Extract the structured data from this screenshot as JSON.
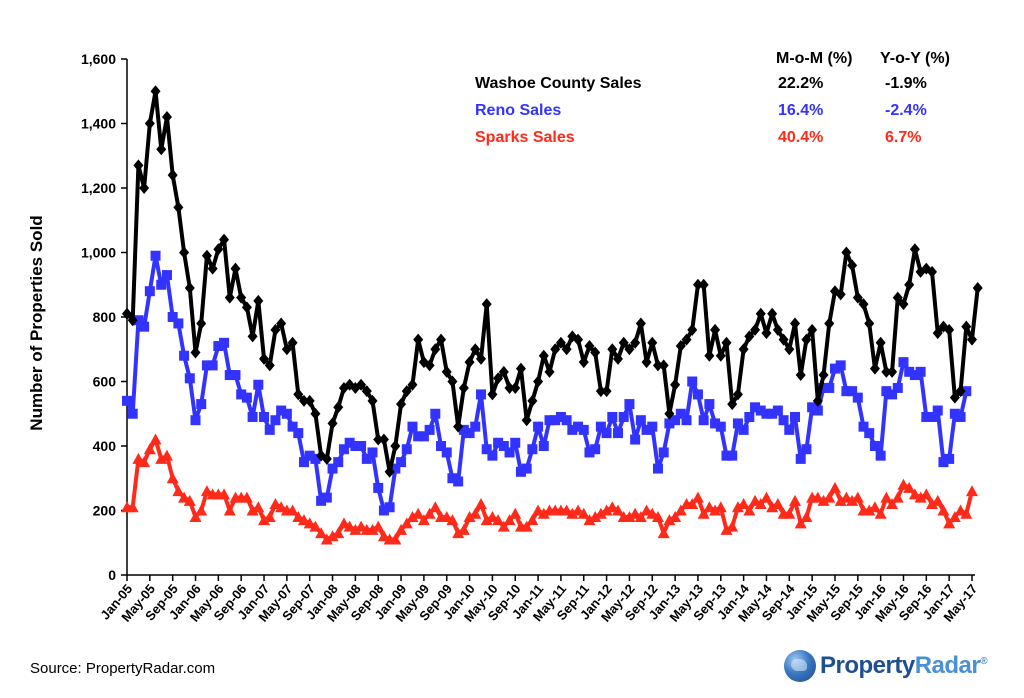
{
  "chart_data": {
    "type": "line",
    "ylabel": "Number of Properties Sold",
    "xlabel": "",
    "ylim": [
      0,
      1600
    ],
    "yticks": [
      0,
      200,
      400,
      600,
      800,
      1000,
      1200,
      1400,
      1600
    ],
    "ytick_labels": [
      "0",
      "200",
      "400",
      "600",
      "800",
      "1,000",
      "1,200",
      "1,400",
      "1,600"
    ],
    "x_tick_labels": [
      "Jan-05",
      "May-05",
      "Sep-05",
      "Jan-06",
      "May-06",
      "Sep-06",
      "Jan-07",
      "May-07",
      "Sep-07",
      "Jan-08",
      "May-08",
      "Sep-08",
      "Jan-09",
      "May-09",
      "Sep-09",
      "Jan-10",
      "May-10",
      "Sep-10",
      "Jan-11",
      "May-11",
      "Sep-11",
      "Jan-12",
      "May-12",
      "Sep-12",
      "Jan-13",
      "May-13",
      "Sep-13",
      "Jan-14",
      "May-14",
      "Sep-14",
      "Jan-15",
      "May-15",
      "Sep-15",
      "Jan-16",
      "May-16",
      "Sep-16",
      "Jan-17",
      "May-17"
    ],
    "x_tick_every": 4,
    "months": 149,
    "grid": false,
    "series": [
      {
        "name": "Washoe County Sales",
        "color": "#000000",
        "marker": "diamond",
        "values": [
          810,
          790,
          1270,
          1200,
          1400,
          1500,
          1320,
          1420,
          1240,
          1140,
          1000,
          890,
          690,
          780,
          990,
          950,
          1010,
          1040,
          860,
          950,
          860,
          830,
          740,
          850,
          670,
          650,
          760,
          780,
          700,
          720,
          560,
          540,
          540,
          500,
          370,
          360,
          470,
          520,
          580,
          590,
          580,
          590,
          570,
          540,
          420,
          420,
          320,
          400,
          530,
          570,
          590,
          730,
          660,
          650,
          700,
          730,
          630,
          600,
          460,
          580,
          660,
          700,
          670,
          840,
          560,
          610,
          630,
          580,
          580,
          640,
          480,
          540,
          600,
          680,
          630,
          700,
          720,
          700,
          740,
          730,
          660,
          710,
          690,
          570,
          570,
          700,
          670,
          720,
          700,
          720,
          780,
          660,
          720,
          650,
          650,
          500,
          590,
          710,
          730,
          760,
          900,
          900,
          680,
          760,
          680,
          720,
          530,
          560,
          700,
          740,
          760,
          810,
          750,
          810,
          760,
          730,
          700,
          780,
          620,
          730,
          760,
          540,
          620,
          780,
          880,
          870,
          1000,
          960,
          860,
          840,
          780,
          640,
          720,
          630,
          630,
          860,
          840,
          900,
          1010,
          940,
          950,
          940,
          750,
          770,
          760,
          550,
          570,
          770,
          730,
          890
        ],
        "end_labels": [
          "22.2%",
          "-1.9%"
        ]
      },
      {
        "name": "Reno Sales",
        "color": "#3333ff",
        "marker": "square",
        "values": [
          540,
          500,
          790,
          770,
          880,
          990,
          900,
          930,
          800,
          780,
          680,
          610,
          480,
          530,
          650,
          650,
          710,
          720,
          620,
          620,
          560,
          550,
          490,
          590,
          490,
          450,
          480,
          510,
          500,
          460,
          440,
          350,
          370,
          360,
          230,
          240,
          330,
          350,
          390,
          410,
          400,
          400,
          360,
          380,
          270,
          200,
          210,
          330,
          350,
          390,
          460,
          430,
          430,
          450,
          500,
          400,
          380,
          300,
          290,
          450,
          440,
          460,
          560,
          390,
          370,
          410,
          400,
          380,
          410,
          320,
          330,
          390,
          460,
          400,
          480,
          480,
          490,
          480,
          450,
          460,
          450,
          380,
          390,
          460,
          440,
          490,
          440,
          490,
          530,
          420,
          480,
          450,
          460,
          330,
          380,
          470,
          480,
          500,
          480,
          600,
          560,
          480,
          530,
          470,
          460,
          370,
          370,
          470,
          450,
          490,
          520,
          510,
          500,
          500,
          510,
          480,
          450,
          490,
          360,
          390,
          520,
          510,
          580,
          580,
          640,
          650,
          570,
          570,
          550,
          460,
          440,
          400,
          370,
          570,
          560,
          580,
          660,
          630,
          620,
          630,
          490,
          490,
          510,
          350,
          360,
          500,
          490,
          570
        ],
        "end_labels": [
          "16.4%",
          "-2.4%"
        ]
      },
      {
        "name": "Sparks Sales",
        "color": "#ff2a1a",
        "marker": "triangle",
        "values": [
          210,
          210,
          360,
          350,
          390,
          420,
          360,
          370,
          300,
          260,
          240,
          230,
          180,
          200,
          260,
          250,
          250,
          250,
          200,
          240,
          240,
          240,
          200,
          210,
          170,
          180,
          220,
          210,
          200,
          200,
          180,
          170,
          160,
          150,
          130,
          110,
          120,
          130,
          160,
          150,
          140,
          150,
          140,
          140,
          150,
          120,
          110,
          110,
          140,
          160,
          180,
          190,
          170,
          190,
          210,
          180,
          180,
          170,
          130,
          140,
          180,
          190,
          220,
          170,
          180,
          170,
          150,
          170,
          190,
          150,
          150,
          170,
          200,
          190,
          200,
          200,
          200,
          200,
          190,
          200,
          190,
          170,
          180,
          190,
          200,
          210,
          200,
          180,
          180,
          190,
          180,
          200,
          190,
          180,
          130,
          170,
          180,
          200,
          220,
          220,
          240,
          190,
          210,
          200,
          210,
          140,
          150,
          210,
          220,
          200,
          230,
          220,
          240,
          210,
          220,
          190,
          190,
          230,
          160,
          180,
          240,
          240,
          230,
          240,
          270,
          230,
          240,
          230,
          240,
          200,
          200,
          210,
          190,
          240,
          220,
          240,
          280,
          270,
          250,
          240,
          250,
          220,
          230,
          200,
          160,
          180,
          200,
          190,
          260
        ],
        "end_labels": [
          "40.4%",
          "6.7%"
        ]
      }
    ],
    "legend": {
      "position": "top-right",
      "col_headers": [
        "M-o-M (%)",
        "Y-o-Y (%)"
      ]
    }
  },
  "footer": {
    "source": "Source: PropertyRadar.com",
    "brand_part1": "Property",
    "brand_part2": "Radar",
    "brand_mark": "®"
  }
}
